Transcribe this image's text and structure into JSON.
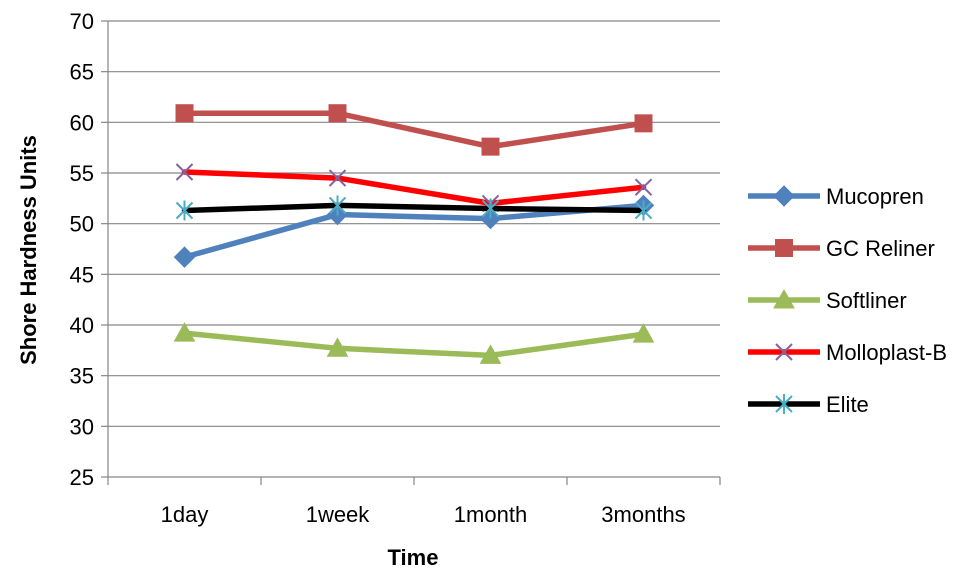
{
  "chart_data": {
    "type": "line",
    "title": "",
    "xlabel": "Time",
    "ylabel": "Shore Hardness Units",
    "categories": [
      "1day",
      "1week",
      "1month",
      "3months"
    ],
    "ylim": [
      25,
      70
    ],
    "yticks": [
      25,
      30,
      35,
      40,
      45,
      50,
      55,
      60,
      65,
      70
    ],
    "grid": true,
    "legend_position": "right",
    "series": [
      {
        "name": "Mucopren",
        "values": [
          46.7,
          50.9,
          50.5,
          51.8
        ],
        "color": "#4F81BD",
        "marker": "diamond"
      },
      {
        "name": "GC Reliner",
        "values": [
          60.9,
          60.9,
          57.6,
          59.9
        ],
        "color": "#C0504D",
        "marker": "square"
      },
      {
        "name": "Softliner",
        "values": [
          39.2,
          37.7,
          37.0,
          39.1
        ],
        "color": "#9BBB59",
        "marker": "triangle"
      },
      {
        "name": "Molloplast-B",
        "values": [
          55.1,
          54.5,
          52.0,
          53.6
        ],
        "color": "#FF0000",
        "marker": "x",
        "marker_color": "#8064A2"
      },
      {
        "name": "Elite",
        "values": [
          51.3,
          51.8,
          51.5,
          51.3
        ],
        "color": "#000000",
        "marker": "star",
        "marker_color": "#4BACC6"
      }
    ]
  }
}
